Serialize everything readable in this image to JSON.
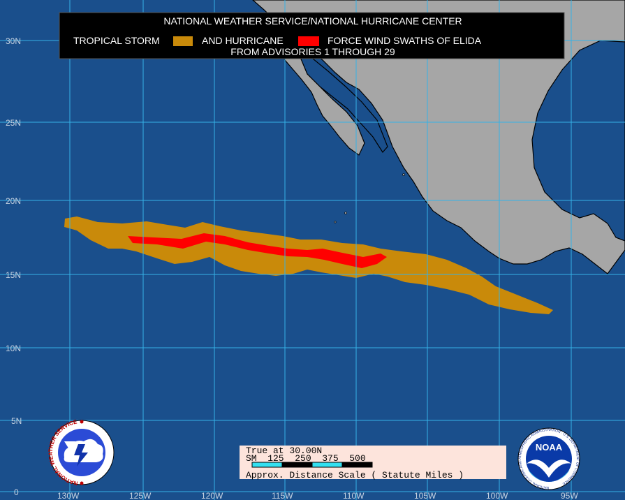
{
  "title": {
    "line1": "NATIONAL WEATHER SERVICE/NATIONAL HURRICANE CENTER",
    "legend_ts": "TROPICAL STORM",
    "legend_and": "AND HURRICANE",
    "legend_hu": "FORCE WIND SWATHS OF ELIDA",
    "line3": "FROM ADVISORIES 1 THROUGH 29"
  },
  "colors": {
    "ocean": "#1a4f8c",
    "land": "#a6a6a6",
    "grid": "#35b2e6",
    "tropical_storm": "#c98a0a",
    "hurricane": "#ff0000",
    "title_bg": "#000000",
    "scale_bg": "#fde4dc",
    "scale_bar": "#33e0f0"
  },
  "grid": {
    "latitudes": [
      "30N",
      "25N",
      "20N",
      "15N",
      "10N",
      "5N",
      "0"
    ],
    "longitudes": [
      "130W",
      "125W",
      "120W",
      "115W",
      "110W",
      "105W",
      "100W",
      "95W"
    ]
  },
  "scale": {
    "line1": "True at 30.00N",
    "line2": "SM  125  250  375  500",
    "line3": "Approx. Distance Scale ( Statute Miles )"
  },
  "logos": {
    "nws_text": "NATIONAL WEATHER SERVICE",
    "noaa_text": "NOAA",
    "noaa_ring_text": "NATIONAL OCEANIC AND ATMOSPHERIC ADMINISTRATION · U.S. DEPARTMENT OF COMMERCE ·"
  }
}
